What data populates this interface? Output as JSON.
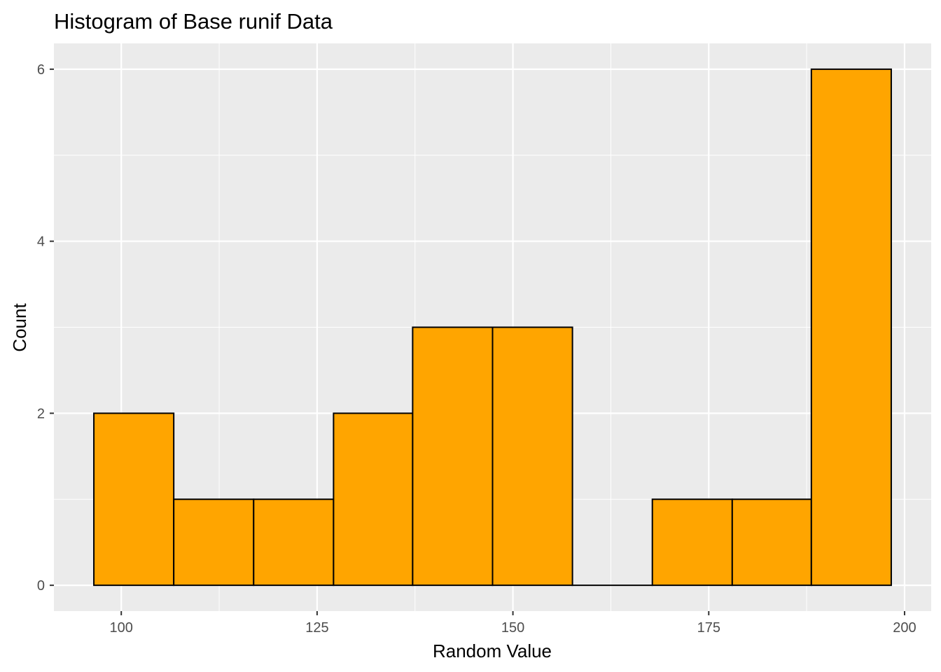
{
  "chart_data": {
    "type": "bar",
    "title": "Histogram of Base runif Data",
    "xlabel": "Random Value",
    "ylabel": "Count",
    "bins": [
      {
        "x0": 96.5,
        "x1": 106.7,
        "count": 2
      },
      {
        "x0": 106.7,
        "x1": 116.9,
        "count": 1
      },
      {
        "x0": 116.9,
        "x1": 127.1,
        "count": 1
      },
      {
        "x0": 127.1,
        "x1": 137.2,
        "count": 2
      },
      {
        "x0": 137.2,
        "x1": 147.4,
        "count": 3
      },
      {
        "x0": 147.4,
        "x1": 157.6,
        "count": 3
      },
      {
        "x0": 157.6,
        "x1": 167.8,
        "count": 0
      },
      {
        "x0": 167.8,
        "x1": 178.0,
        "count": 1
      },
      {
        "x0": 178.0,
        "x1": 188.1,
        "count": 1
      },
      {
        "x0": 188.1,
        "x1": 198.3,
        "count": 6
      }
    ],
    "xlim": [
      91.4,
      203.4
    ],
    "ylim": [
      -0.3,
      6.3
    ],
    "xticks": [
      100,
      125,
      150,
      175,
      200
    ],
    "yticks": [
      0,
      2,
      4,
      6
    ],
    "x_minor_ticks": [
      112.5,
      137.5,
      162.5,
      187.5
    ],
    "y_minor_ticks": [
      1,
      3,
      5
    ],
    "grid": true,
    "legend": "none",
    "colors": {
      "bar_fill": "#FFA500",
      "bar_outline": "#000000",
      "panel_background": "#EBEBEB",
      "grid": "#FFFFFF"
    }
  }
}
